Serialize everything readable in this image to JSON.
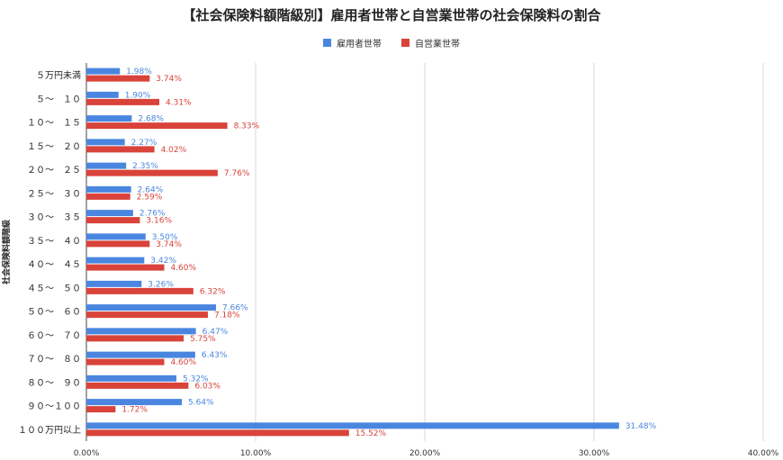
{
  "chart_data": {
    "type": "bar",
    "orientation": "horizontal",
    "title": "【社会保険料額階級別】雇用者世帯と自営業世帯の社会保険料の割合",
    "xlabel": "",
    "ylabel": "社会保険料額階級",
    "xlim": [
      0,
      40
    ],
    "x_ticks": [
      "0.00%",
      "10.00%",
      "20.00%",
      "30.00%",
      "40.00%"
    ],
    "grid": true,
    "legend_position": "top",
    "categories": [
      "５万円未満",
      "５～　１０",
      "１０～　１５",
      "１５～　２０",
      "２０～　２５",
      "２５～　３０",
      "３０～　３５",
      "３５～　４０",
      "４０～　４５",
      "４５～　５０",
      "５０～　６０",
      "６０～　７０",
      "７０～　８０",
      "８０～　９０",
      "９０～１００",
      "１００万円以上"
    ],
    "series": [
      {
        "name": "雇用者世帯",
        "color": "#4a86e0",
        "values": [
          1.98,
          1.9,
          2.68,
          2.27,
          2.35,
          2.64,
          2.76,
          3.5,
          3.42,
          3.26,
          7.66,
          6.47,
          6.43,
          5.32,
          5.64,
          31.48
        ],
        "labels": [
          "1.98%",
          "1.90%",
          "2.68%",
          "2.27%",
          "2.35%",
          "2.64%",
          "2.76%",
          "3.50%",
          "3.42%",
          "3.26%",
          "7.66%",
          "6.47%",
          "6.43%",
          "5.32%",
          "5.64%",
          "31.48%"
        ]
      },
      {
        "name": "自営業世帯",
        "color": "#d9433a",
        "values": [
          3.74,
          4.31,
          8.33,
          4.02,
          7.76,
          2.59,
          3.16,
          3.74,
          4.6,
          6.32,
          7.18,
          5.75,
          4.6,
          6.03,
          1.72,
          15.52
        ],
        "labels": [
          "3.74%",
          "4.31%",
          "8.33%",
          "4.02%",
          "7.76%",
          "2.59%",
          "3.16%",
          "3.74%",
          "4.60%",
          "6.32%",
          "7.18%",
          "5.75%",
          "4.60%",
          "6.03%",
          "1.72%",
          "15.52%"
        ]
      }
    ]
  }
}
